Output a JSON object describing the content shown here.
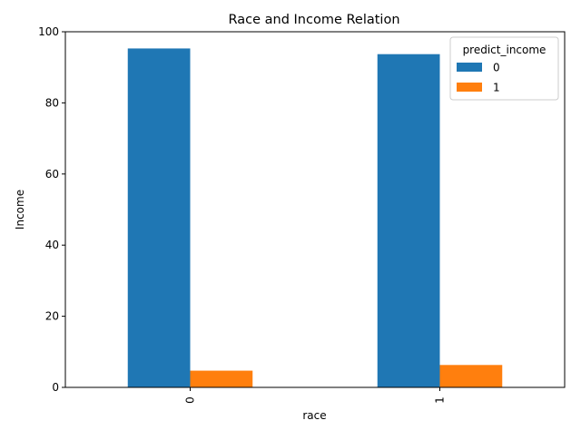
{
  "chart_data": {
    "type": "bar",
    "title": "Race and Income Relation",
    "xlabel": "race",
    "ylabel": "Income",
    "categories": [
      "0",
      "1"
    ],
    "ylim": [
      0,
      100
    ],
    "yticks": [
      0,
      20,
      40,
      60,
      80,
      100
    ],
    "grid": false,
    "legend": {
      "title": "predict_income",
      "placement": "top-right"
    },
    "series": [
      {
        "name": "0",
        "color": "#1f77b4",
        "values": [
          95.3,
          93.7
        ]
      },
      {
        "name": "1",
        "color": "#ff7f0e",
        "values": [
          4.7,
          6.3
        ]
      }
    ]
  }
}
